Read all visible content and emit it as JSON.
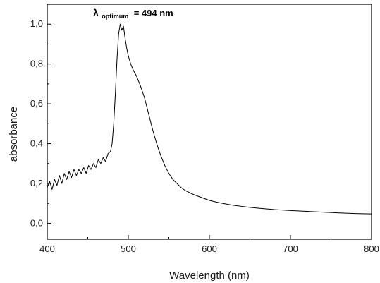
{
  "chart_data": {
    "type": "line",
    "xlabel": "Wavelength (nm)",
    "ylabel": "absorbance",
    "xlim": [
      400,
      800
    ],
    "ylim": [
      -0.08,
      1.1
    ],
    "x_ticks": [
      400,
      500,
      600,
      700,
      800
    ],
    "y_ticks": [
      0.0,
      0.2,
      0.4,
      0.6,
      0.8,
      1.0
    ],
    "x_tick_labels": [
      "400",
      "500",
      "600",
      "700",
      "800"
    ],
    "y_tick_labels": [
      "0,0",
      "0,2",
      "0,4",
      "0,6",
      "0,8",
      "1,0"
    ],
    "grid": false,
    "line_color": "#000000",
    "annotation": {
      "symbol": "λ",
      "subscript": "optimum",
      "text": "= 494 nm"
    },
    "series": [
      {
        "x": [
          400,
          403,
          406,
          409,
          412,
          415,
          418,
          421,
          424,
          427,
          430,
          433,
          436,
          439,
          442,
          445,
          448,
          451,
          454,
          457,
          460,
          463,
          466,
          469,
          472,
          475,
          478,
          480,
          482,
          484,
          486,
          488,
          490,
          492,
          494,
          496,
          498,
          500,
          503,
          506,
          510,
          515,
          520,
          525,
          530,
          535,
          540,
          545,
          550,
          555,
          560,
          565,
          570,
          580,
          590,
          600,
          610,
          620,
          630,
          640,
          650,
          660,
          680,
          700,
          720,
          740,
          760,
          780,
          800
        ],
        "y": [
          0.18,
          0.21,
          0.17,
          0.22,
          0.19,
          0.24,
          0.2,
          0.25,
          0.22,
          0.26,
          0.23,
          0.27,
          0.24,
          0.27,
          0.25,
          0.28,
          0.25,
          0.29,
          0.27,
          0.3,
          0.28,
          0.32,
          0.3,
          0.33,
          0.31,
          0.35,
          0.36,
          0.4,
          0.5,
          0.65,
          0.82,
          0.95,
          1.0,
          0.97,
          0.99,
          0.93,
          0.88,
          0.84,
          0.8,
          0.77,
          0.74,
          0.69,
          0.63,
          0.55,
          0.47,
          0.4,
          0.34,
          0.29,
          0.25,
          0.22,
          0.2,
          0.18,
          0.165,
          0.145,
          0.13,
          0.115,
          0.105,
          0.097,
          0.09,
          0.085,
          0.08,
          0.076,
          0.069,
          0.064,
          0.06,
          0.056,
          0.052,
          0.049,
          0.047
        ]
      }
    ]
  }
}
